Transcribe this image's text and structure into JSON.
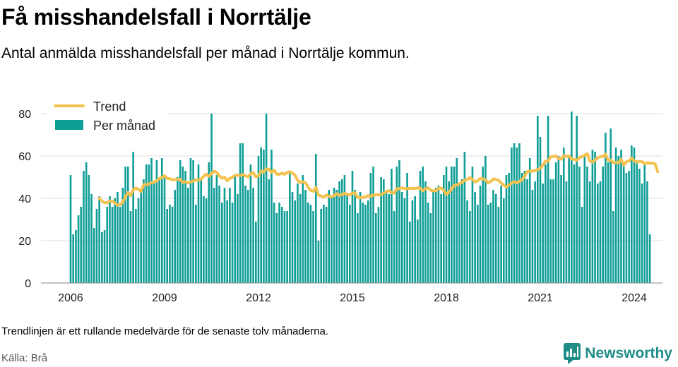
{
  "header": {
    "title": "Få misshandelsfall i Norrtälje",
    "subtitle": "Antal anmälda misshandelsfall per månad i Norrtälje kommun."
  },
  "footer": {
    "note": "Trendlinjen är ett rullande medelvärde för de senaste tolv månaderna.",
    "source": "Källa: Brå",
    "brand": "Newsworthy"
  },
  "colors": {
    "bar": "#0f9e96",
    "trend": "#f5c24f",
    "grid": "#dddddd",
    "brand": "#1f8c87"
  },
  "chart_data": {
    "type": "bar",
    "x_start": "2006-01",
    "interval": "month",
    "xticks": [
      "2006",
      "2009",
      "2012",
      "2015",
      "2018",
      "2021",
      "2024"
    ],
    "yticks": [
      0,
      20,
      40,
      60,
      80
    ],
    "ylim": [
      0,
      80
    ],
    "legend": {
      "position": "top-left",
      "trend_label": "Trend",
      "bar_label": "Per månad"
    },
    "series": [
      {
        "name": "Per månad",
        "values": [
          51,
          23,
          25,
          32,
          36,
          53,
          57,
          51,
          42,
          26,
          35,
          41,
          24,
          25,
          36,
          41,
          36,
          40,
          43,
          36,
          45,
          55,
          55,
          34,
          62,
          35,
          40,
          44,
          49,
          56,
          56,
          59,
          47,
          58,
          49,
          59,
          51,
          35,
          37,
          36,
          44,
          50,
          58,
          55,
          53,
          45,
          59,
          58,
          37,
          56,
          49,
          41,
          40,
          57,
          80,
          45,
          51,
          46,
          38,
          45,
          39,
          45,
          38,
          51,
          42,
          66,
          66,
          46,
          44,
          56,
          45,
          29,
          60,
          64,
          63,
          80,
          49,
          63,
          38,
          33,
          38,
          36,
          34,
          34,
          53,
          43,
          39,
          47,
          42,
          51,
          44,
          38,
          37,
          34,
          61,
          20,
          35,
          37,
          36,
          44,
          41,
          45,
          44,
          48,
          49,
          51,
          42,
          37,
          53,
          44,
          33,
          43,
          38,
          37,
          39,
          52,
          55,
          33,
          36,
          50,
          49,
          43,
          42,
          54,
          34,
          55,
          58,
          43,
          40,
          52,
          29,
          39,
          41,
          30,
          53,
          55,
          48,
          38,
          33,
          43,
          45,
          46,
          42,
          51,
          55,
          48,
          55,
          55,
          59,
          47,
          49,
          62,
          39,
          34,
          55,
          43,
          37,
          46,
          55,
          60,
          37,
          38,
          44,
          42,
          36,
          46,
          40,
          51,
          52,
          64,
          66,
          64,
          66,
          52,
          53,
          49,
          59,
          44,
          48,
          79,
          69,
          47,
          56,
          79,
          49,
          49,
          57,
          60,
          51,
          64,
          48,
          60,
          81,
          56,
          79,
          55,
          36,
          60,
          55,
          48,
          63,
          62,
          47,
          48,
          55,
          71,
          57,
          73,
          34,
          64,
          60,
          63,
          55,
          52,
          53,
          65,
          64,
          57,
          54,
          47,
          57,
          48,
          23
        ]
      },
      {
        "name": "Trend",
        "values": [
          null,
          null,
          null,
          null,
          null,
          null,
          null,
          null,
          null,
          null,
          null,
          40.1,
          38.7,
          37.9,
          37.9,
          38.7,
          38.7,
          37.8,
          36.8,
          37.1,
          38.2,
          40.7,
          42.7,
          41.3,
          44.1,
          44.9,
          44.2,
          43.3,
          46.4,
          46.5,
          46.7,
          47.4,
          47.6,
          48.3,
          49.4,
          49.8,
          50.7,
          49.4,
          49.3,
          48.7,
          48.9,
          48.9,
          49.0,
          47.5,
          47.8,
          47.2,
          47.8,
          48.1,
          48.9,
          48.6,
          49.1,
          50.4,
          51.4,
          50.4,
          51.7,
          52.8,
          52.2,
          50.6,
          49.5,
          50.0,
          48.3,
          49.4,
          50.0,
          50.8,
          50.9,
          50.7,
          51.3,
          50.6,
          50.1,
          51.6,
          52.2,
          50.1,
          50.6,
          52.8,
          52.5,
          53.9,
          53.7,
          52.3,
          53.3,
          51.4,
          51.3,
          51.9,
          51.3,
          52.2,
          52.6,
          51.9,
          51.0,
          48.4,
          47.5,
          47.8,
          47.4,
          45.3,
          43.8,
          43.3,
          45.1,
          41.5,
          41.1,
          40.5,
          41.6,
          40.9,
          40.7,
          41.3,
          42.2,
          41.4,
          41.9,
          42.3,
          42.0,
          41.5,
          42.5,
          42.6,
          40.4,
          40.3,
          40.4,
          40.7,
          41.3,
          41.0,
          41.5,
          41.6,
          41.7,
          41.8,
          42.5,
          43.1,
          43.7,
          42.7,
          42.5,
          44.5,
          44.6,
          44.9,
          44.6,
          44.5,
          44.7,
          44.7,
          44.6,
          44.9,
          44.8,
          43.6,
          44.5,
          45.0,
          43.8,
          43.6,
          43.5,
          44.7,
          44.9,
          43.8,
          41.9,
          42.8,
          44.5,
          46.0,
          46.3,
          46.8,
          47.6,
          48.6,
          48.8,
          49.8,
          48.9,
          47.7,
          48.3,
          49.4,
          49.2,
          48.8,
          47.3,
          47.9,
          49.2,
          48.9,
          48.5,
          47.2,
          46.2,
          45.4,
          46.2,
          47.2,
          47.8,
          47.3,
          48.0,
          48.7,
          50.5,
          52.6,
          52.8,
          52.8,
          53.2,
          53.6,
          54.1,
          55.6,
          57.6,
          57.6,
          59.6,
          59.8,
          60.0,
          58.7,
          58.5,
          60.1,
          59.8,
          60.0,
          58.6,
          58.4,
          57.9,
          59.2,
          59.7,
          60.3,
          61.1,
          57.6,
          57.1,
          58.1,
          59.1,
          59.6,
          59.8,
          60.8,
          58.0,
          58.1,
          56.9,
          57.0,
          56.8,
          58.4,
          55.7,
          57.3,
          57.6,
          59.0,
          57.8,
          57.1,
          57.5,
          57.3,
          56.3,
          56.8,
          56.5,
          56.6,
          56.3,
          52.6
        ]
      }
    ]
  }
}
